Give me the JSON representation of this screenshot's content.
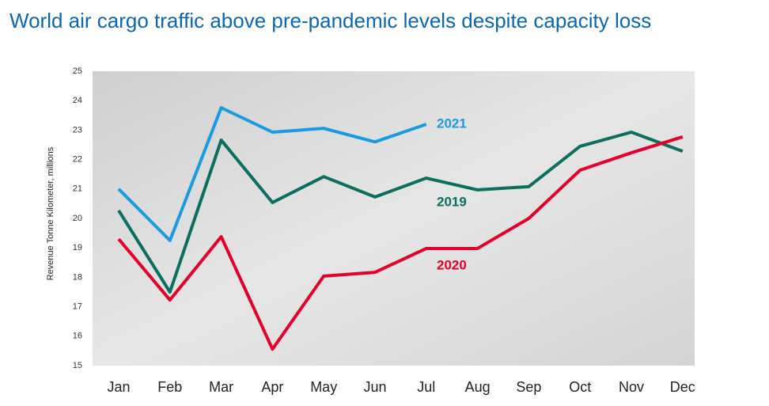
{
  "chart_data": {
    "type": "line",
    "title": "World air cargo traffic above pre-pandemic levels despite capacity loss",
    "y_label": "Revenue Tonne Kilometer, millions",
    "categories": [
      "Jan",
      "Feb",
      "Mar",
      "Apr",
      "May",
      "Jun",
      "Jul",
      "Aug",
      "Sep",
      "Oct",
      "Nov",
      "Dec"
    ],
    "series": [
      {
        "name": "2021",
        "color": "#1a9ae0",
        "values": [
          21.0,
          19.25,
          23.76,
          22.93,
          23.06,
          22.6,
          23.2,
          null,
          null,
          null,
          null,
          null
        ]
      },
      {
        "name": "2019",
        "color": "#0b6e5f",
        "values": [
          20.27,
          17.5,
          22.66,
          20.54,
          21.42,
          20.73,
          21.37,
          20.97,
          21.08,
          22.45,
          22.93,
          22.28
        ]
      },
      {
        "name": "2020",
        "color": "#e4002b",
        "values": [
          19.3,
          17.23,
          19.38,
          15.56,
          18.04,
          18.17,
          18.98,
          18.98,
          20.0,
          21.64,
          22.23,
          22.77
        ]
      }
    ],
    "ylim": [
      15,
      25
    ],
    "yticks": [
      15,
      16,
      17,
      18,
      19,
      20,
      21,
      22,
      23,
      24,
      25
    ]
  }
}
